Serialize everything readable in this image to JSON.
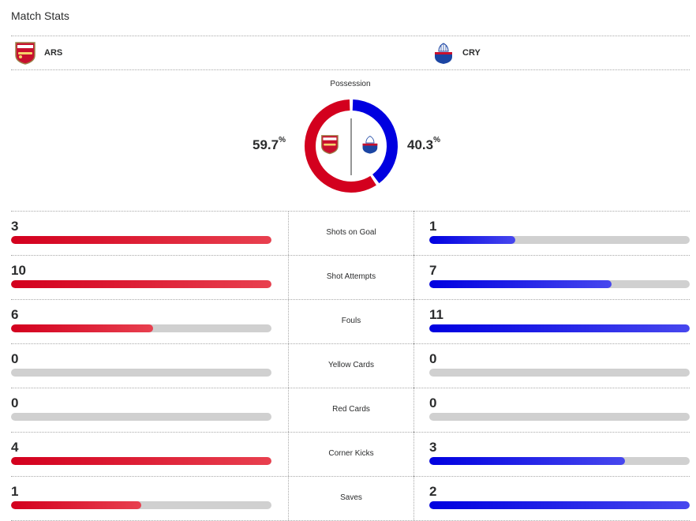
{
  "header": {
    "title": "Match Stats"
  },
  "teams": {
    "home": {
      "abbr": "ARS",
      "crest_icon": "arsenal-crest-icon",
      "color": "#d3001e"
    },
    "away": {
      "abbr": "CRY",
      "crest_icon": "crystal-palace-crest-icon",
      "color": "#0000e0"
    }
  },
  "possession": {
    "label": "Possession",
    "home_value": "59.7",
    "away_value": "40.3",
    "home_fraction": 0.597,
    "away_fraction": 0.403,
    "unit": "%"
  },
  "stats": [
    {
      "label": "Shots on Goal",
      "home": "3",
      "away": "1",
      "home_fill": 1.0,
      "away_fill": 0.33
    },
    {
      "label": "Shot Attempts",
      "home": "10",
      "away": "7",
      "home_fill": 1.0,
      "away_fill": 0.7
    },
    {
      "label": "Fouls",
      "home": "6",
      "away": "11",
      "home_fill": 0.545,
      "away_fill": 1.0
    },
    {
      "label": "Yellow Cards",
      "home": "0",
      "away": "0",
      "home_fill": 0,
      "away_fill": 0
    },
    {
      "label": "Red Cards",
      "home": "0",
      "away": "0",
      "home_fill": 0,
      "away_fill": 0
    },
    {
      "label": "Corner Kicks",
      "home": "4",
      "away": "3",
      "home_fill": 1.0,
      "away_fill": 0.75
    },
    {
      "label": "Saves",
      "home": "1",
      "away": "2",
      "home_fill": 0.5,
      "away_fill": 1.0
    }
  ]
}
